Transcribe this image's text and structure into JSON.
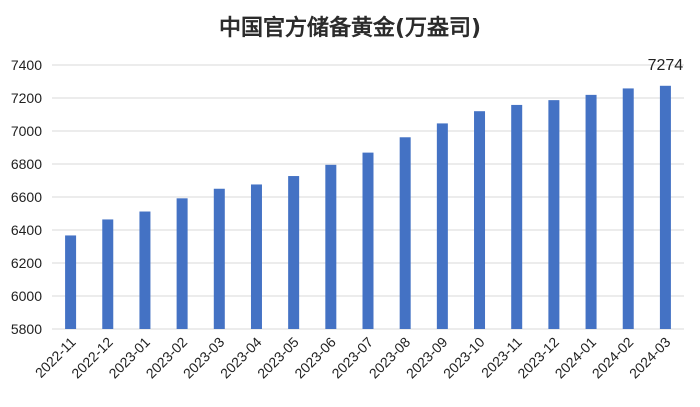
{
  "chart_data": {
    "type": "bar",
    "title": "中国官方储备黄金(万盎司)",
    "xlabel": "",
    "ylabel": "",
    "categories": [
      "2022-11",
      "2022-12",
      "2023-01",
      "2023-02",
      "2023-03",
      "2023-04",
      "2023-05",
      "2023-06",
      "2023-07",
      "2023-08",
      "2023-09",
      "2023-10",
      "2023-11",
      "2023-12",
      "2024-01",
      "2024-02",
      "2024-03"
    ],
    "values": [
      6367,
      6464,
      6512,
      6592,
      6650,
      6676,
      6727,
      6795,
      6869,
      6962,
      7046,
      7120,
      7158,
      7187,
      7219,
      7258,
      7274
    ],
    "ylim": [
      5800,
      7400
    ],
    "yticks": [
      5800,
      6000,
      6200,
      6400,
      6600,
      6800,
      7000,
      7200,
      7400
    ],
    "grid": true,
    "legend": "none",
    "bar_color": "#4472c4",
    "data_labels": [
      {
        "index": 16,
        "text": "7274"
      }
    ]
  }
}
